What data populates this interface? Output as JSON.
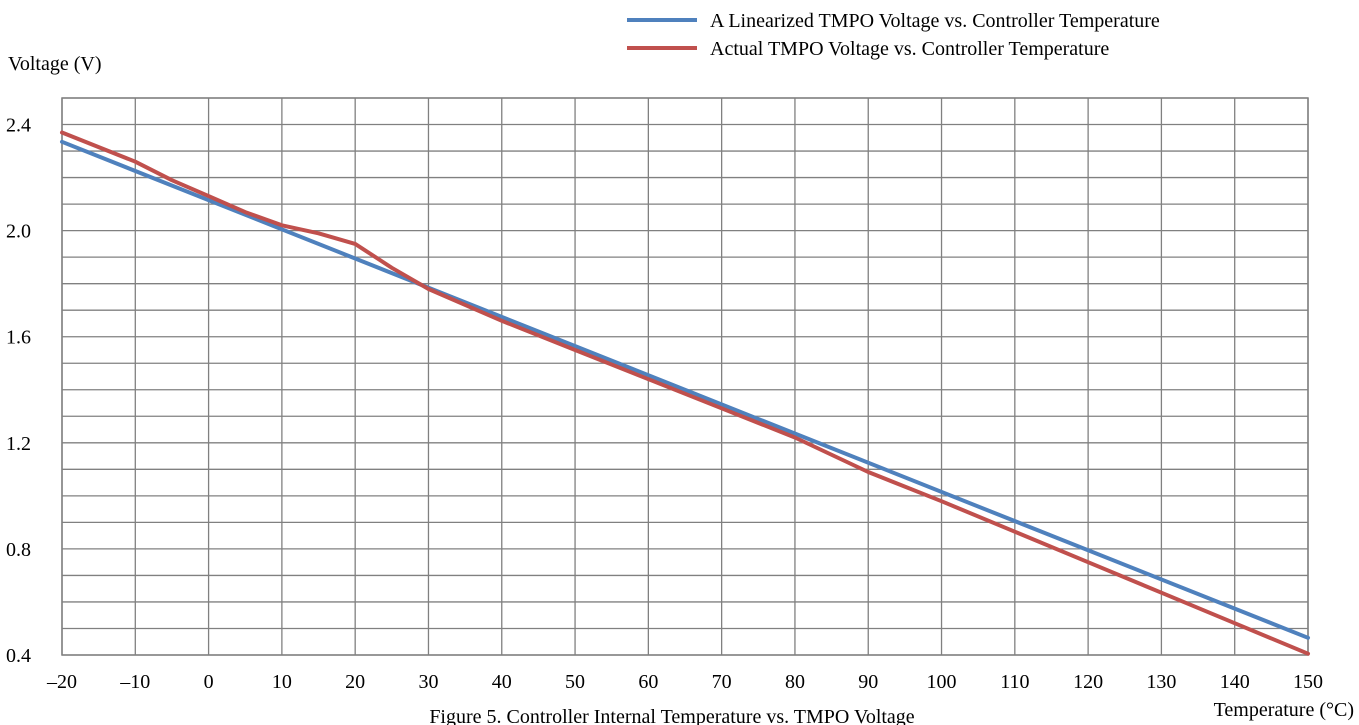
{
  "chart_data": {
    "type": "line",
    "title": "Figure 5.  Controller Internal Temperature vs. TMPO Voltage",
    "xlabel": "Temperature (°C)",
    "ylabel": "Voltage (V)",
    "xlim": [
      -20,
      150
    ],
    "ylim": [
      0.4,
      2.5
    ],
    "x_ticks": [
      -20,
      -10,
      0,
      10,
      20,
      30,
      40,
      50,
      60,
      70,
      80,
      90,
      100,
      110,
      120,
      130,
      140,
      150
    ],
    "x_tick_labels": [
      "–20",
      "–10",
      "0",
      "10",
      "20",
      "30",
      "40",
      "50",
      "60",
      "70",
      "80",
      "90",
      "100",
      "110",
      "120",
      "130",
      "140",
      "150"
    ],
    "y_ticks": [
      0.4,
      0.8,
      1.2,
      1.6,
      2.0,
      2.4
    ],
    "y_tick_labels": [
      "0.4",
      "0.8",
      "1.2",
      "1.6",
      "2.0",
      "2.4"
    ],
    "grid": true,
    "legend_position": "top-right",
    "series": [
      {
        "name": "A Linearized TMPO Voltage vs. Controller Temperature",
        "color": "#4f81bd",
        "x": [
          -20,
          150
        ],
        "y": [
          2.335,
          0.465
        ]
      },
      {
        "name": "Actual TMPO Voltage vs. Controller Temperature",
        "color": "#c0504d",
        "x": [
          -20,
          -10,
          -5,
          0,
          5,
          10,
          15,
          20,
          25,
          30,
          40,
          50,
          60,
          70,
          80,
          90,
          100,
          110,
          120,
          130,
          140,
          150
        ],
        "y": [
          2.37,
          2.26,
          2.19,
          2.13,
          2.07,
          2.02,
          1.99,
          1.95,
          1.86,
          1.78,
          1.66,
          1.55,
          1.44,
          1.33,
          1.22,
          1.09,
          0.98,
          0.865,
          0.75,
          0.635,
          0.52,
          0.405
        ]
      }
    ]
  }
}
